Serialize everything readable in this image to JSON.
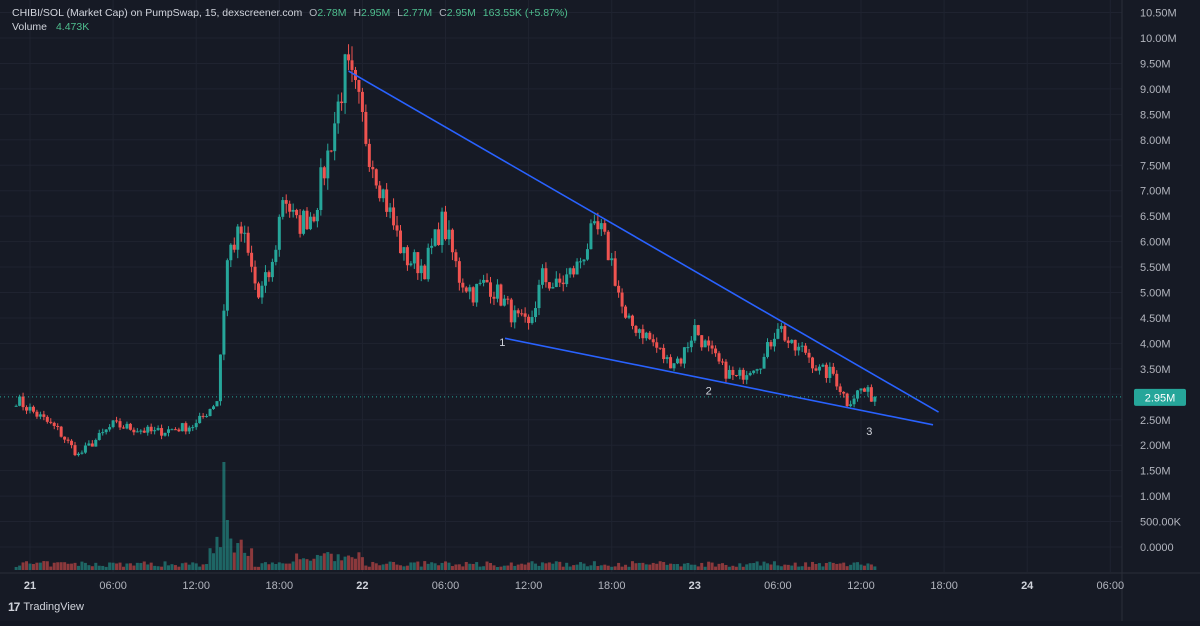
{
  "header": {
    "title": "CHIBI/SOL (Market Cap) on PumpSwap, 15, dexscreener.com",
    "o_label": "O",
    "o_value": "2.78M",
    "h_label": "H",
    "h_value": "2.95M",
    "l_label": "L",
    "l_value": "2.77M",
    "c_label": "C",
    "c_value": "2.95M",
    "change": "163.55K (+5.87%)",
    "volume_label": "Volume",
    "volume_value": "4.473K"
  },
  "brand": {
    "logo_text": "TradingView"
  },
  "colors": {
    "bg": "#161a25",
    "up": "#26a69a",
    "down": "#ef5350",
    "trendline": "#2962ff",
    "grid": "#1f2330",
    "axis_text": "#b2b5be",
    "price_badge": "#26a69a"
  },
  "chart_data": {
    "type": "candlestick",
    "y_axis": {
      "unit": "market cap",
      "ticks": [
        "10.50M",
        "10.00M",
        "9.50M",
        "9.00M",
        "8.50M",
        "8.00M",
        "7.50M",
        "7.00M",
        "6.50M",
        "6.00M",
        "5.50M",
        "5.00M",
        "4.50M",
        "4.00M",
        "3.50M",
        "3.00M",
        "2.50M",
        "2.00M",
        "1.50M",
        "1.00M",
        "500.00K",
        "0.0000"
      ],
      "tick_values": [
        10.5,
        10.0,
        9.5,
        9.0,
        8.5,
        8.0,
        7.5,
        7.0,
        6.5,
        6.0,
        5.5,
        5.0,
        4.5,
        4.0,
        3.5,
        3.0,
        2.5,
        2.0,
        1.5,
        1.0,
        0.5,
        0.0
      ],
      "last_price_label": "2.95M",
      "last_price_value": 2.95
    },
    "x_axis": {
      "ticks": [
        "21",
        "06:00",
        "12:00",
        "18:00",
        "22",
        "06:00",
        "12:00",
        "18:00",
        "23",
        "06:00",
        "12:00",
        "18:00",
        "24",
        "06:00"
      ],
      "tick_hours": [
        0,
        6,
        12,
        18,
        24,
        30,
        36,
        42,
        48,
        54,
        60,
        66,
        72,
        78
      ],
      "bold_ticks": [
        "21",
        "22",
        "23",
        "24"
      ]
    },
    "anchors_hours_price": [
      [
        -1,
        2.9
      ],
      [
        2,
        2.3
      ],
      [
        3.5,
        1.8
      ],
      [
        6,
        2.4
      ],
      [
        9,
        2.25
      ],
      [
        12,
        2.4
      ],
      [
        13.5,
        2.9
      ],
      [
        14.3,
        5.8
      ],
      [
        15.3,
        6.2
      ],
      [
        16.5,
        4.9
      ],
      [
        17.5,
        5.5
      ],
      [
        18.3,
        7.0
      ],
      [
        19.2,
        6.3
      ],
      [
        20.5,
        6.6
      ],
      [
        21.5,
        7.7
      ],
      [
        22.8,
        9.4
      ],
      [
        23.6,
        8.8
      ],
      [
        24.5,
        7.8
      ],
      [
        25.8,
        6.7
      ],
      [
        27,
        5.7
      ],
      [
        28.5,
        5.5
      ],
      [
        29.8,
        6.4
      ],
      [
        31,
        5.3
      ],
      [
        32,
        5.0
      ],
      [
        33,
        5.2
      ],
      [
        34,
        4.9
      ],
      [
        35,
        4.5
      ],
      [
        36,
        4.3
      ],
      [
        37,
        5.3
      ],
      [
        38,
        5.1
      ],
      [
        39.5,
        5.5
      ],
      [
        40.5,
        6.1
      ],
      [
        41.2,
        6.2
      ],
      [
        42,
        5.6
      ],
      [
        43,
        4.4
      ],
      [
        44,
        4.3
      ],
      [
        45,
        4.0
      ],
      [
        46,
        3.65
      ],
      [
        47,
        3.7
      ],
      [
        48,
        4.3
      ],
      [
        49,
        3.85
      ],
      [
        50,
        3.5
      ],
      [
        51,
        3.3
      ],
      [
        52,
        3.55
      ],
      [
        53,
        3.7
      ],
      [
        54,
        4.4
      ],
      [
        55,
        3.9
      ],
      [
        56,
        3.85
      ],
      [
        57,
        3.45
      ],
      [
        58,
        3.4
      ],
      [
        59,
        2.85
      ],
      [
        60,
        3.1
      ],
      [
        61,
        2.92
      ]
    ],
    "volume_series": "per-candle volume bars along the bottom, largest spike near 12:00-13:00 on day 21",
    "annotations": [
      {
        "label": "1",
        "x_hours": 34.1,
        "price": 3.95
      },
      {
        "label": "2",
        "x_hours": 49.0,
        "price": 3.0
      },
      {
        "label": "3",
        "x_hours": 60.6,
        "price": 2.2
      }
    ],
    "trendlines": [
      {
        "name": "upper",
        "from": [
          23.0,
          9.35
        ],
        "to": [
          65.6,
          2.65
        ]
      },
      {
        "name": "lower",
        "from": [
          34.3,
          4.1
        ],
        "to": [
          65.2,
          2.4
        ]
      }
    ]
  }
}
